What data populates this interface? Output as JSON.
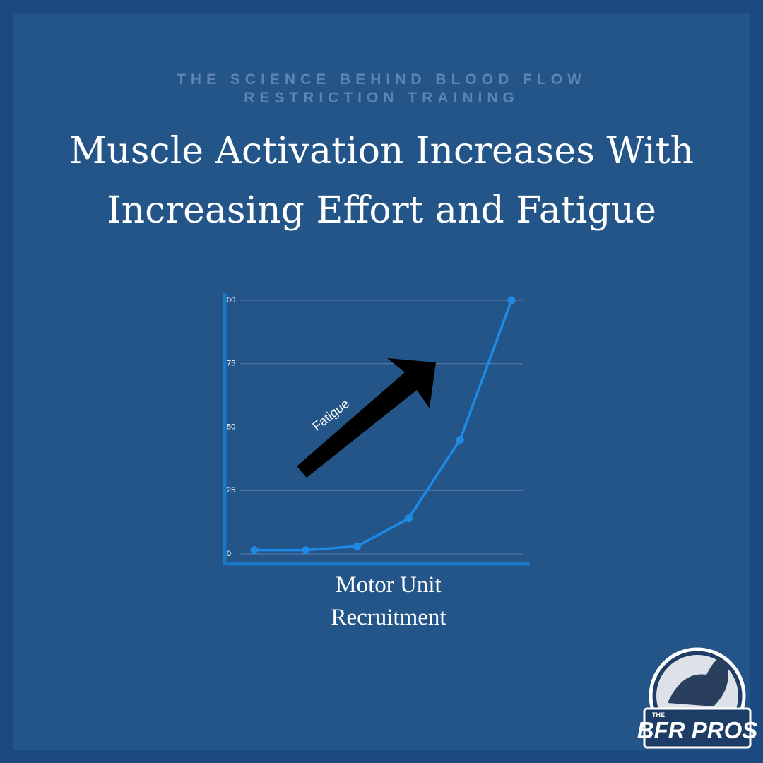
{
  "chart_data": {
    "type": "line",
    "subtitle": "THE SCIENCE BEHIND BLOOD FLOW RESTRICTION TRAINING",
    "title": "Muscle Activation Increases With Increasing Effort and Fatigue",
    "x_label": "Motor Unit Recruitment",
    "annotation": "Fatigue",
    "categories": [
      null,
      null,
      null,
      null,
      null,
      null
    ],
    "values": [
      1.5,
      1.5,
      3,
      14,
      45,
      100
    ],
    "color": "#1e8ae6",
    "ylim": [
      0,
      100
    ],
    "yticks": [
      0,
      25,
      50,
      75,
      {
        "value": 100,
        "label": "00"
      }
    ],
    "grid": true
  },
  "logo": {
    "small": "THE",
    "main": "BFR PROS"
  }
}
